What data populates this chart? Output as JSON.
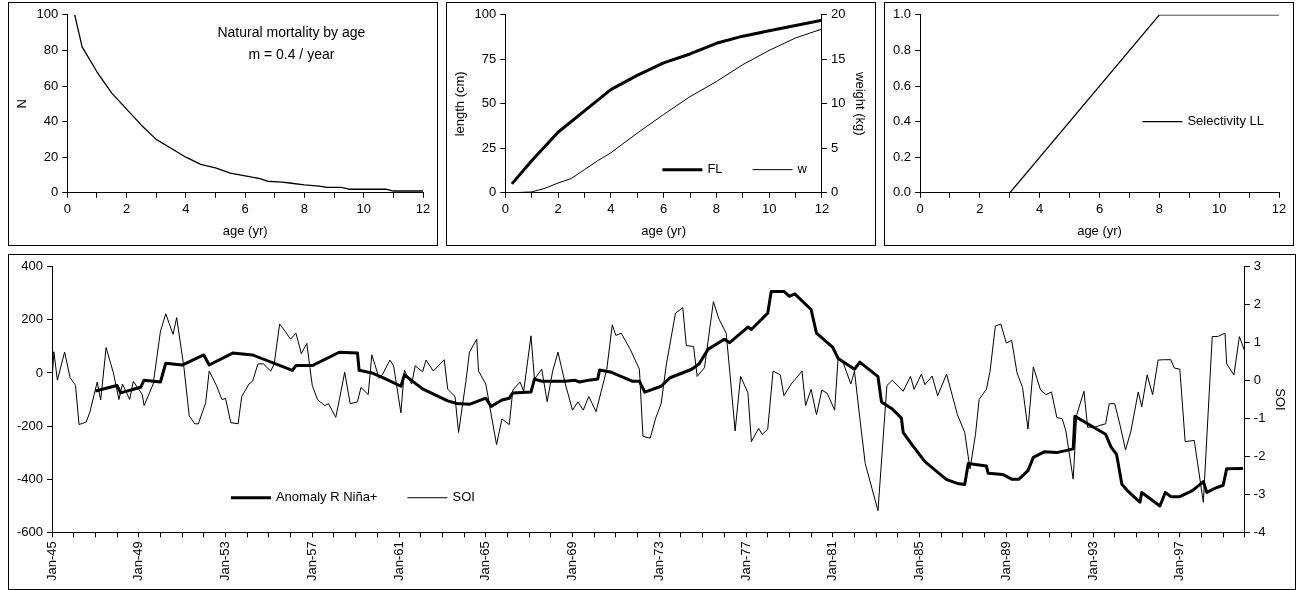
{
  "chart_data": [
    {
      "type": "line",
      "xlabel": "age (yr)",
      "ylabel": "N",
      "annotations": [
        "Natural mortality by age",
        "m = 0.4 / year"
      ],
      "x": [
        0.25,
        0.5,
        1,
        1.5,
        2,
        2.5,
        3,
        3.5,
        4,
        4.5,
        5,
        5.5,
        6,
        6.5,
        6.75,
        7.25,
        7.5,
        8,
        8.5,
        8.75,
        9.25,
        9.5,
        10.75,
        11,
        12
      ],
      "values": [
        100,
        82,
        68,
        56,
        47,
        38,
        30,
        25,
        20,
        16,
        14,
        11,
        9.5,
        8,
        6.5,
        6,
        5.5,
        4.5,
        3.8,
        3,
        3,
        2,
        2,
        1,
        1
      ],
      "color": "#000000",
      "xlim": [
        0,
        12
      ],
      "xticks": [
        0,
        {
          "value": 1,
          "label": null
        },
        2,
        {
          "value": 3,
          "label": null
        },
        4,
        {
          "value": 5,
          "label": null
        },
        6,
        {
          "value": 7,
          "label": null
        },
        8,
        {
          "value": 9,
          "label": null
        },
        10,
        {
          "value": 11,
          "label": null
        },
        12
      ],
      "ylim": [
        0,
        100
      ],
      "yticks": [
        0,
        20,
        40,
        60,
        80,
        100
      ]
    },
    {
      "type": "line",
      "xlabel": "age (yr)",
      "ylabel": "length (cm)",
      "y2label": "weight (kg)",
      "legend": "bottom right",
      "x": [
        0.25,
        1,
        2,
        3,
        4,
        5,
        6,
        7,
        8,
        9,
        10,
        11,
        12
      ],
      "series": [
        {
          "name": "FL",
          "color": "#000000",
          "values": [
            5,
            18,
            34,
            46,
            58,
            66,
            73,
            78,
            84,
            88,
            91,
            94,
            97
          ]
        },
        {
          "name": "w",
          "color": "#000000",
          "axis": "y2",
          "x": [
            0.25,
            1,
            1.5,
            2,
            2.5,
            3,
            3.5,
            4,
            5,
            6,
            7,
            8,
            9,
            10,
            11,
            12
          ],
          "values": [
            0,
            0.1,
            0.5,
            1.1,
            1.6,
            2.6,
            3.6,
            4.5,
            6.7,
            8.8,
            10.8,
            12.5,
            14.4,
            16,
            17.4,
            18.4
          ]
        }
      ],
      "xlim": [
        0,
        12
      ],
      "xticks": [
        0,
        {
          "value": 1,
          "label": null
        },
        2,
        {
          "value": 3,
          "label": null
        },
        4,
        {
          "value": 5,
          "label": null
        },
        6,
        {
          "value": 7,
          "label": null
        },
        8,
        {
          "value": 9,
          "label": null
        },
        10,
        {
          "value": 11,
          "label": null
        },
        12
      ],
      "ylim": [
        0,
        100
      ],
      "yticks": [
        0,
        25,
        50,
        75,
        100
      ],
      "y2lim": [
        0,
        20
      ],
      "y2ticks": [
        0,
        5,
        10,
        15,
        20
      ]
    },
    {
      "type": "line",
      "xlabel": "age (yr)",
      "legend": "right",
      "x": [
        0.25,
        3,
        8,
        12
      ],
      "series": [
        {
          "name": "Selectivity LL",
          "color": "#000000",
          "values": [
            0,
            0,
            1,
            1
          ]
        }
      ],
      "xlim": [
        0,
        12
      ],
      "xticks": [
        0,
        {
          "value": 1,
          "label": null
        },
        2,
        {
          "value": 3,
          "label": null
        },
        4,
        {
          "value": 5,
          "label": null
        },
        6,
        {
          "value": 7,
          "label": null
        },
        8,
        {
          "value": 9,
          "label": null
        },
        10,
        {
          "value": 11,
          "label": null
        },
        12
      ],
      "ylim": [
        0,
        1
      ],
      "yticks": [
        {
          "value": 0,
          "label": "0.0"
        },
        {
          "value": 0.2,
          "label": "0.2"
        },
        {
          "value": 0.4,
          "label": "0.4"
        },
        {
          "value": 0.6,
          "label": "0.6"
        },
        {
          "value": 0.8,
          "label": "0.8"
        },
        {
          "value": 1,
          "label": "1.0"
        }
      ]
    },
    {
      "type": "line",
      "y2label": "SOI",
      "legend": "bottom left",
      "series": [
        {
          "name": "Anomaly R Niña+",
          "color": "#000000",
          "x": [
            "1947-01",
            "1948-01",
            "1948-03",
            "1949-02",
            "1949-04",
            "1950-01",
            "1950-04",
            "1951-01",
            "1952-01",
            "1952-04",
            "1953-05",
            "1954-04",
            "1956-02",
            "1956-04",
            "1957-01",
            "1958-04",
            "1959-02",
            "1959-03",
            "1959-10",
            "1960-05",
            "1961-02",
            "1961-04",
            "1962-02",
            "1963-04",
            "1963-09",
            "1964-04",
            "1965-01",
            "1965-04",
            "1965-10",
            "1966-02",
            "1966-04",
            "1967-02",
            "1967-04",
            "1967-08",
            "1968-09",
            "1969-02",
            "1969-05",
            "1969-10",
            "1970-03",
            "1970-04",
            "1970-10",
            "1971-10",
            "1972-02",
            "1972-05",
            "1973-02",
            "1973-07",
            "1974-07",
            "1974-11",
            "1975-04",
            "1976-01",
            "1976-04",
            "1977-02",
            "1977-04",
            "1978-01",
            "1978-03",
            "1978-10",
            "1979-01",
            "1979-04",
            "1980-01",
            "1980-04",
            "1981-01",
            "1981-04",
            "1982-01",
            "1982-04",
            "1983-02",
            "1983-04",
            "1983-10",
            "1984-03",
            "1984-04",
            "1984-09",
            "1985-04",
            "1986-04",
            "1986-10",
            "1987-02",
            "1987-04",
            "1988-02",
            "1988-03",
            "1988-11",
            "1989-04",
            "1989-08",
            "1990-01",
            "1990-04",
            "1990-10",
            "1991-05",
            "1992-02",
            "1992-03",
            "1993-03",
            "1993-08",
            "1993-11",
            "1994-02",
            "1994-05",
            "1994-08",
            "1995-03",
            "1995-04",
            "1996-02",
            "1996-05",
            "1996-08",
            "1997-01",
            "1997-08",
            "1998-02",
            "1998-04",
            "1998-08",
            "1999-01",
            "1999-03",
            "1999-12"
          ],
          "values": [
            -68,
            -47,
            -75,
            -54,
            -27,
            -34,
            37,
            30,
            68,
            30,
            75,
            68,
            10,
            28,
            28,
            78,
            75,
            10,
            0,
            -20,
            -50,
            -7,
            -60,
            -105,
            -115,
            -118,
            -95,
            -126,
            -102,
            -95,
            -75,
            -72,
            -23,
            -31,
            -31,
            -27,
            -34,
            -27,
            -23,
            11,
            4,
            -31,
            -31,
            -72,
            -50,
            -18,
            14,
            34,
            89,
            127,
            114,
            173,
            164,
            225,
            307,
            307,
            289,
            298,
            239,
            150,
            96,
            55,
            14,
            41,
            -14,
            -109,
            -136,
            -170,
            -225,
            -272,
            -334,
            -402,
            -416,
            -420,
            -341,
            -350,
            -378,
            -382,
            -400,
            -400,
            -368,
            -318,
            -297,
            -300,
            -286,
            -163,
            -211,
            -231,
            -279,
            -307,
            -419,
            -443,
            -487,
            -450,
            -501,
            -450,
            -466,
            -466,
            -443,
            -409,
            -450,
            -436,
            -423,
            -361,
            -360
          ]
        },
        {
          "name": "SOI",
          "color": "#000000",
          "axis": "y2",
          "x": [
            "1945-01",
            "1945-02",
            "1945-04",
            "1945-08",
            "1945-11",
            "1946-02",
            "1946-04",
            "1946-08",
            "1946-10",
            "1947-02",
            "1947-04",
            "1947-07",
            "1947-11",
            "1948-02",
            "1948-04",
            "1948-08",
            "1948-10",
            "1949-03",
            "1949-04",
            "1949-09",
            "1950-01",
            "1950-04",
            "1950-08",
            "1950-10",
            "1951-02",
            "1951-05",
            "1951-08",
            "1951-10",
            "1952-02",
            "1952-04",
            "1952-08",
            "1952-11",
            "1953-01",
            "1953-04",
            "1953-08",
            "1953-10",
            "1954-02",
            "1954-04",
            "1954-07",
            "1954-10",
            "1955-02",
            "1955-04",
            "1955-07",
            "1955-10",
            "1956-01",
            "1956-04",
            "1956-07",
            "1956-10",
            "1957-01",
            "1957-04",
            "1957-08",
            "1957-10",
            "1958-02",
            "1958-04",
            "1958-07",
            "1958-10",
            "1959-02",
            "1959-04",
            "1959-08",
            "1959-10",
            "1960-02",
            "1960-04",
            "1960-08",
            "1960-10",
            "1961-02",
            "1961-04",
            "1961-08",
            "1961-10",
            "1962-02",
            "1962-04",
            "1962-08",
            "1963-02",
            "1963-04",
            "1963-08",
            "1963-10",
            "1964-02",
            "1964-04",
            "1964-08",
            "1964-09",
            "1965-01",
            "1965-07",
            "1965-10",
            "1966-02",
            "1966-04",
            "1966-08",
            "1966-10",
            "1967-02",
            "1967-04",
            "1967-08",
            "1967-11",
            "1968-02",
            "1968-05",
            "1968-09",
            "1969-01",
            "1969-04",
            "1969-07",
            "1969-10",
            "1970-02",
            "1970-08",
            "1970-11",
            "1971-01",
            "1971-04",
            "1971-09",
            "1972-02",
            "1972-04",
            "1972-08",
            "1972-11",
            "1973-02",
            "1973-05",
            "1973-10",
            "1974-02",
            "1974-04",
            "1974-08",
            "1974-10",
            "1975-02",
            "1975-07",
            "1975-10",
            "1976-02",
            "1976-04",
            "1976-07",
            "1976-10",
            "1977-02",
            "1977-04",
            "1977-08",
            "1977-10",
            "1978-01",
            "1978-04",
            "1978-08",
            "1978-10",
            "1979-02",
            "1979-08",
            "1979-10",
            "1980-01",
            "1980-04",
            "1980-07",
            "1980-10",
            "1981-02",
            "1981-04",
            "1981-07",
            "1981-11",
            "1982-01",
            "1982-04",
            "1982-07",
            "1983-02",
            "1983-07",
            "1983-10",
            "1984-04",
            "1984-08",
            "1984-10",
            "1985-02",
            "1985-04",
            "1985-08",
            "1985-11",
            "1986-04",
            "1986-10",
            "1987-02",
            "1987-05",
            "1987-08",
            "1987-10",
            "1988-02",
            "1988-04",
            "1988-07",
            "1988-10",
            "1989-01",
            "1989-04",
            "1989-07",
            "1989-10",
            "1990-01",
            "1990-04",
            "1990-08",
            "1990-11",
            "1991-02",
            "1991-05",
            "1991-08",
            "1991-10",
            "1992-02",
            "1992-04",
            "1992-08",
            "1992-10",
            "1993-02",
            "1993-05",
            "1993-08",
            "1993-10",
            "1994-01",
            "1994-04",
            "1994-07",
            "1994-10",
            "1995-02",
            "1995-04",
            "1995-07",
            "1995-10",
            "1996-01",
            "1996-04",
            "1996-08",
            "1996-10",
            "1997-01",
            "1997-04",
            "1997-09",
            "1998-02",
            "1998-07",
            "1998-10",
            "1999-02",
            "1999-03",
            "1999-07",
            "1999-10",
            "2000-01"
          ],
          "values": [
            0.01,
            0.76,
            0.01,
            0.75,
            0.08,
            -0.13,
            -1.16,
            -1.09,
            -0.83,
            -0.04,
            -0.51,
            0.87,
            0.2,
            -0.5,
            -0.09,
            -0.5,
            -0.02,
            -0.37,
            -0.66,
            -0.09,
            1.3,
            1.76,
            1.22,
            1.66,
            0.34,
            -0.93,
            -1.14,
            -1.14,
            -0.59,
            0.25,
            -0.13,
            -0.5,
            -0.47,
            -1.11,
            -1.14,
            -0.42,
            -0.09,
            -0.02,
            0.44,
            0.44,
            0.25,
            0.44,
            1.49,
            1.3,
            1.09,
            1.25,
            0.71,
            0.98,
            -0.13,
            -0.51,
            -0.66,
            -0.61,
            -0.97,
            -0.51,
            0.22,
            -0.61,
            -0.56,
            -0.18,
            -0.37,
            0.68,
            0.06,
            0.17,
            0.54,
            0.39,
            -0.85,
            0.27,
            -0.09,
            0.39,
            0.23,
            0.54,
            0.25,
            0.55,
            -0.23,
            -0.42,
            -1.37,
            -0.02,
            0.75,
            1.09,
            0.25,
            -0.09,
            -1.69,
            -1.01,
            -1.16,
            -0.25,
            -0.04,
            -0.28,
            1.18,
            0.04,
            0.3,
            -0.56,
            0.25,
            0.75,
            -0.09,
            -0.78,
            -0.56,
            -0.78,
            -0.42,
            -0.82,
            0.3,
            1.47,
            1.19,
            1.25,
            0.82,
            0.3,
            -1.47,
            -1.52,
            -0.99,
            -0.61,
            0.44,
            1.78,
            1.92,
            0.92,
            0.9,
            0.11,
            0.34,
            2.08,
            1.63,
            1.25,
            0.25,
            -1.33,
            0.11,
            -0.32,
            -1.61,
            -1.26,
            -1.42,
            -1.28,
            0.25,
            0.15,
            -0.4,
            -0.09,
            0.25,
            -0.66,
            -0.23,
            -0.9,
            -0.25,
            -0.34,
            -0.78,
            0.61,
            0.44,
            -0.09,
            0.25,
            -0.99,
            -2.19,
            -3.43,
            -0.13,
            0.01,
            -0.28,
            0.11,
            -0.23,
            0.17,
            -0.11,
            0.12,
            -0.4,
            0.17,
            -0.9,
            -1.37,
            -2.33,
            -1.42,
            -0.5,
            -0.23,
            0.23,
            1.44,
            1.49,
            0.99,
            1.06,
            0.2,
            -0.18,
            -1.28,
            0.36,
            -0.25,
            -0.37,
            -0.3,
            -0.97,
            -1.01,
            -1.33,
            -2.6,
            -0.9,
            -0.28,
            -1.23,
            -1.23,
            -1.18,
            -1.14,
            -0.61,
            -0.61,
            -1.18,
            -1.83,
            -1.33,
            -0.3,
            -0.69,
            0.15,
            -0.37,
            0.54,
            0.55,
            0.55,
            0.33,
            0.3,
            -1.61,
            -1.58,
            -3.21,
            1.16,
            1.16,
            1.25,
            0.44,
            0.15,
            1.16,
            0.77
          ]
        }
      ],
      "xlim": [
        "1945-01",
        "2000-01"
      ],
      "xticks": [
        {
          "value": "1945-01",
          "label": "Jan-45"
        },
        {
          "value": "1946-01",
          "label": null
        },
        {
          "value": "1947-01",
          "label": null
        },
        {
          "value": "1948-01",
          "label": null
        },
        {
          "value": "1949-01",
          "label": "Jan-49"
        },
        {
          "value": "1950-01",
          "label": null
        },
        {
          "value": "1951-01",
          "label": null
        },
        {
          "value": "1952-01",
          "label": null
        },
        {
          "value": "1953-01",
          "label": "Jan-53"
        },
        {
          "value": "1954-01",
          "label": null
        },
        {
          "value": "1955-01",
          "label": null
        },
        {
          "value": "1956-01",
          "label": null
        },
        {
          "value": "1957-01",
          "label": "Jan-57"
        },
        {
          "value": "1958-01",
          "label": null
        },
        {
          "value": "1959-01",
          "label": null
        },
        {
          "value": "1960-01",
          "label": null
        },
        {
          "value": "1961-01",
          "label": "Jan-61"
        },
        {
          "value": "1962-01",
          "label": null
        },
        {
          "value": "1963-01",
          "label": null
        },
        {
          "value": "1964-01",
          "label": null
        },
        {
          "value": "1965-01",
          "label": "Jan-65"
        },
        {
          "value": "1966-01",
          "label": null
        },
        {
          "value": "1967-01",
          "label": null
        },
        {
          "value": "1968-01",
          "label": null
        },
        {
          "value": "1969-01",
          "label": "Jan-69"
        },
        {
          "value": "1970-01",
          "label": null
        },
        {
          "value": "1971-01",
          "label": null
        },
        {
          "value": "1972-01",
          "label": null
        },
        {
          "value": "1973-01",
          "label": "Jan-73"
        },
        {
          "value": "1974-01",
          "label": null
        },
        {
          "value": "1975-01",
          "label": null
        },
        {
          "value": "1976-01",
          "label": null
        },
        {
          "value": "1977-01",
          "label": "Jan-77"
        },
        {
          "value": "1978-01",
          "label": null
        },
        {
          "value": "1979-01",
          "label": null
        },
        {
          "value": "1980-01",
          "label": null
        },
        {
          "value": "1981-01",
          "label": "Jan-81"
        },
        {
          "value": "1982-01",
          "label": null
        },
        {
          "value": "1983-01",
          "label": null
        },
        {
          "value": "1984-01",
          "label": null
        },
        {
          "value": "1985-01",
          "label": "Jan-85"
        },
        {
          "value": "1986-01",
          "label": null
        },
        {
          "value": "1987-01",
          "label": null
        },
        {
          "value": "1988-01",
          "label": null
        },
        {
          "value": "1989-01",
          "label": "Jan-89"
        },
        {
          "value": "1990-01",
          "label": null
        },
        {
          "value": "1991-01",
          "label": null
        },
        {
          "value": "1992-01",
          "label": null
        },
        {
          "value": "1993-01",
          "label": "Jan-93"
        },
        {
          "value": "1994-01",
          "label": null
        },
        {
          "value": "1995-01",
          "label": null
        },
        {
          "value": "1996-01",
          "label": null
        },
        {
          "value": "1997-01",
          "label": "Jan-97"
        },
        {
          "value": "1998-01",
          "label": null
        },
        {
          "value": "1999-01",
          "label": null
        },
        {
          "value": "2000-01",
          "label": null
        }
      ],
      "ylim": [
        -600,
        400
      ],
      "yticks": [
        -600,
        -400,
        -200,
        0,
        200,
        400
      ],
      "y2lim": [
        -4,
        3
      ],
      "y2ticks": [
        -4,
        -3,
        -2,
        -1,
        0,
        1,
        2,
        3
      ]
    }
  ]
}
